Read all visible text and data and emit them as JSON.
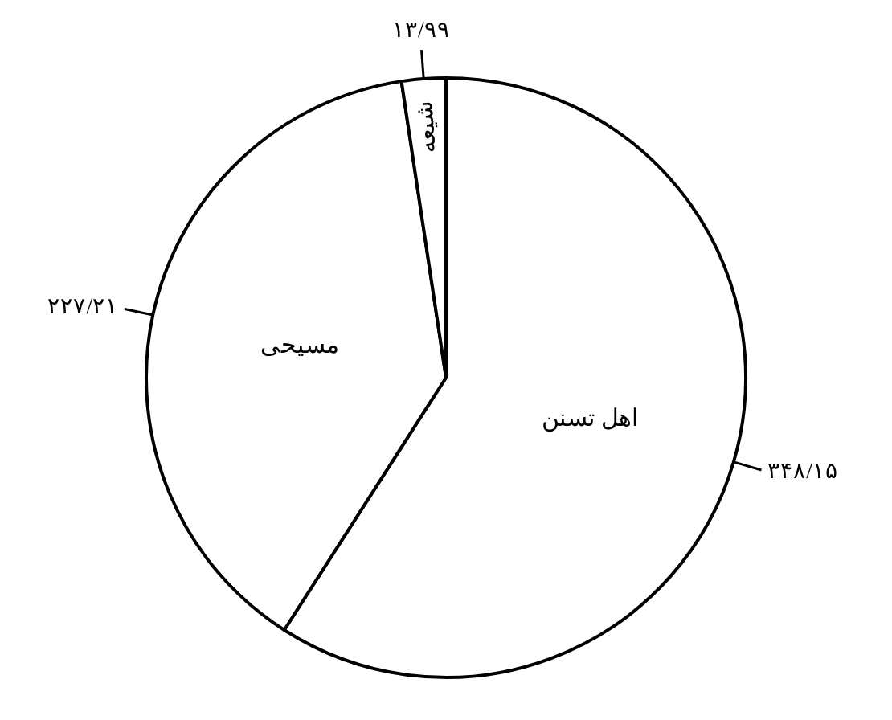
{
  "chart_data": {
    "type": "pie",
    "categories": [
      "اهل تسنن",
      "مسیحی",
      "شیعه"
    ],
    "values": [
      348.15,
      227.21,
      13.99
    ],
    "colors": [
      "#ffffff",
      "#ffffff",
      "#ffffff"
    ],
    "value_labels": [
      "۳۴۸/۱۵",
      "۲۲۷/۲۱",
      "۱۳/۹۹"
    ],
    "legend": false
  }
}
